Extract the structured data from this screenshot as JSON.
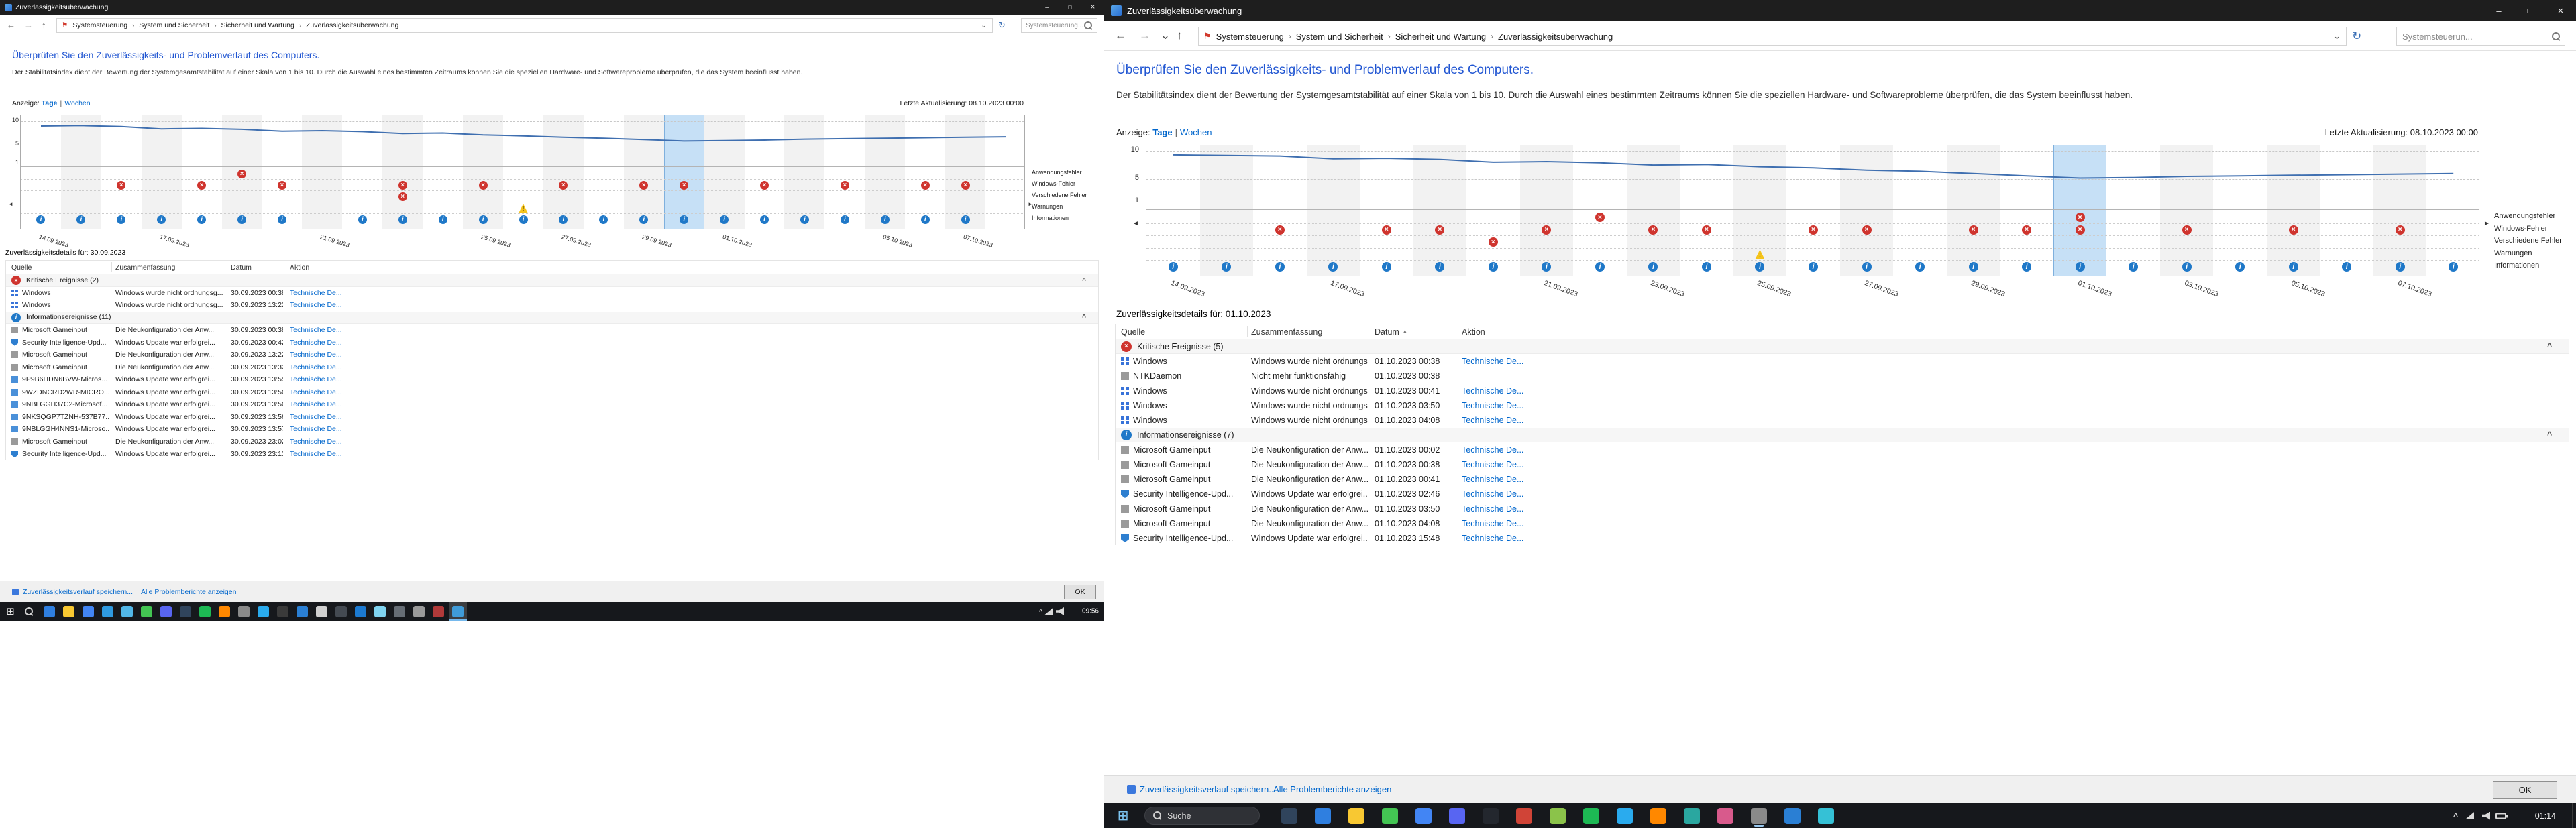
{
  "colors": {
    "heading_blue": "#2156d2",
    "link_blue": "#0066cc",
    "critical_red": "#cf342e",
    "info_blue": "#1f78c8",
    "warning_yellow": "#f5c41c",
    "selection_blue": "#c6e0f6",
    "line_blue": "#3f6fb0",
    "titlebar_dark": "#1e1e1e",
    "taskbar_dark": "#16181c"
  },
  "left_window": {
    "title": "Zuverlässigkeitsüberwachung",
    "breadcrumb": [
      "Systemsteuerung",
      "System und Sicherheit",
      "Sicherheit und Wartung",
      "Zuverlässigkeitsüberwachung"
    ],
    "search_text": "Systemsteuerung...",
    "heading": "Überprüfen Sie den Zuverlässigkeits- und Problemverlauf des Computers.",
    "description": "Der Stabilitätsindex dient der Bewertung der Systemgesamtstabilität auf einer Skala von 1 bis 10. Durch die Auswahl eines bestimmten Zeitraums können Sie die speziellen Hardware- und Softwareprobleme überprüfen, die das System beeinflusst haben.",
    "view_label": "Anzeige:",
    "view_days": "Tage",
    "view_separator": "|",
    "view_weeks": "Wochen",
    "last_update": "Letzte Aktualisierung: 08.10.2023 00:00",
    "details_title": "Zuverlässigkeitsdetails für: 30.09.2023",
    "columns": [
      "Quelle",
      "Zusammenfassung",
      "Datum",
      "Aktion"
    ],
    "groups": [
      {
        "type": "critical",
        "label": "Kritische Ereignisse (2)",
        "rows": [
          {
            "icon": "windows",
            "source": "Windows",
            "summary": "Windows wurde nicht ordnungsg...",
            "date": "30.09.2023 00:39",
            "action": "Technische De..."
          },
          {
            "icon": "windows",
            "source": "Windows",
            "summary": "Windows wurde nicht ordnungsg...",
            "date": "30.09.2023 13:22",
            "action": "Technische De..."
          }
        ]
      },
      {
        "type": "info",
        "label": "Informationsereignisse (11)",
        "rows": [
          {
            "icon": "app",
            "source": "Microsoft Gameinput",
            "summary": "Die Neukonfiguration der Anw...",
            "date": "30.09.2023 00:39",
            "action": "Technische De..."
          },
          {
            "icon": "shield",
            "source": "Security Intelligence-Upd...",
            "summary": "Windows Update war erfolgrei...",
            "date": "30.09.2023 00:42",
            "action": "Technische De..."
          },
          {
            "icon": "app",
            "source": "Microsoft Gameinput",
            "summary": "Die Neukonfiguration der Anw...",
            "date": "30.09.2023 13:22",
            "action": "Technische De..."
          },
          {
            "icon": "app",
            "source": "Microsoft Gameinput",
            "summary": "Die Neukonfiguration der Anw...",
            "date": "30.09.2023 13:32",
            "action": "Technische De..."
          },
          {
            "icon": "store",
            "source": "9P9B6HDN6BVW-Micros...",
            "summary": "Windows Update war erfolgrei...",
            "date": "30.09.2023 13:55",
            "action": "Technische De..."
          },
          {
            "icon": "store",
            "source": "9WZDNCRD2WR-MICRO...",
            "summary": "Windows Update war erfolgrei...",
            "date": "30.09.2023 13:56",
            "action": "Technische De..."
          },
          {
            "icon": "store",
            "source": "9NBLGGH37C2-Microsof...",
            "summary": "Windows Update war erfolgrei...",
            "date": "30.09.2023 13:56",
            "action": "Technische De..."
          },
          {
            "icon": "store",
            "source": "9NKSQGP7TZNH-537B77...",
            "summary": "Windows Update war erfolgrei...",
            "date": "30.09.2023 13:56",
            "action": "Technische De..."
          },
          {
            "icon": "store",
            "source": "9NBLGGH4NNS1-Microso...",
            "summary": "Windows Update war erfolgrei...",
            "date": "30.09.2023 13:57",
            "action": "Technische De..."
          },
          {
            "icon": "app",
            "source": "Microsoft Gameinput",
            "summary": "Die Neukonfiguration der Anw...",
            "date": "30.09.2023 23:02",
            "action": "Technische De..."
          },
          {
            "icon": "shield",
            "source": "Security Intelligence-Upd...",
            "summary": "Windows Update war erfolgrei...",
            "date": "30.09.2023 23:13",
            "action": "Technische De..."
          }
        ]
      }
    ],
    "footer": {
      "save_link": "Zuverlässigkeitsverlauf speichern...",
      "reports_link": "Alle Problemberichte anzeigen",
      "ok": "OK"
    },
    "taskbar": {
      "time": "09:56",
      "active_index": 21,
      "app_colors": [
        "#2f7fe0",
        "#f8c832",
        "#4285f4",
        "#2f9ae0",
        "#52b7e8",
        "#43c553",
        "#5865f2",
        "#30445c",
        "#1db954",
        "#ff8800",
        "#8a8a8a",
        "#2aabee",
        "#3a3a3a",
        "#2a7fd4",
        "#d0d0d0",
        "#444a52",
        "#1c7ad1",
        "#7fd3f0",
        "#666d75",
        "#9a9a9a",
        "#b13a3a",
        "#3f9bd8"
      ]
    }
  },
  "right_window": {
    "title": "Zuverlässigkeitsüberwachung",
    "breadcrumb": [
      "Systemsteuerung",
      "System und Sicherheit",
      "Sicherheit und Wartung",
      "Zuverlässigkeitsüberwachung"
    ],
    "search_text": "Systemsteuerun...",
    "heading": "Überprüfen Sie den Zuverlässigkeits- und Problemverlauf des Computers.",
    "description": "Der Stabilitätsindex dient der Bewertung der Systemgesamtstabilität auf einer Skala von 1 bis 10. Durch die Auswahl eines bestimmten Zeitraums können Sie die speziellen Hardware- und Softwareprobleme überprüfen, die das System beeinflusst haben.",
    "view_label": "Anzeige:",
    "view_days": "Tage",
    "view_separator": "|",
    "view_weeks": "Wochen",
    "last_update": "Letzte Aktualisierung: 08.10.2023 00:00",
    "details_title": "Zuverlässigkeitsdetails für: 01.10.2023",
    "columns": [
      "Quelle",
      "Zusammenfassung",
      "Datum",
      "Aktion"
    ],
    "groups": [
      {
        "type": "critical",
        "label": "Kritische Ereignisse (5)",
        "rows": [
          {
            "icon": "windows",
            "source": "Windows",
            "summary": "Windows wurde nicht ordnungsg...",
            "date": "01.10.2023 00:38",
            "action": "Technische De..."
          },
          {
            "icon": "app",
            "source": "NTKDaemon",
            "summary": "Nicht mehr funktionsfähig",
            "date": "01.10.2023 00:38",
            "action": ""
          },
          {
            "icon": "windows",
            "source": "Windows",
            "summary": "Windows wurde nicht ordnungsg...",
            "date": "01.10.2023 00:41",
            "action": "Technische De..."
          },
          {
            "icon": "windows",
            "source": "Windows",
            "summary": "Windows wurde nicht ordnungsg...",
            "date": "01.10.2023 03:50",
            "action": "Technische De..."
          },
          {
            "icon": "windows",
            "source": "Windows",
            "summary": "Windows wurde nicht ordnungsg...",
            "date": "01.10.2023 04:08",
            "action": "Technische De..."
          }
        ]
      },
      {
        "type": "info",
        "label": "Informationsereignisse (7)",
        "rows": [
          {
            "icon": "app",
            "source": "Microsoft Gameinput",
            "summary": "Die Neukonfiguration der Anw...",
            "date": "01.10.2023 00:02",
            "action": "Technische De..."
          },
          {
            "icon": "app",
            "source": "Microsoft Gameinput",
            "summary": "Die Neukonfiguration der Anw...",
            "date": "01.10.2023 00:38",
            "action": "Technische De..."
          },
          {
            "icon": "app",
            "source": "Microsoft Gameinput",
            "summary": "Die Neukonfiguration der Anw...",
            "date": "01.10.2023 00:41",
            "action": "Technische De..."
          },
          {
            "icon": "shield",
            "source": "Security Intelligence-Upd...",
            "summary": "Windows Update war erfolgrei...",
            "date": "01.10.2023 02:46",
            "action": "Technische De..."
          },
          {
            "icon": "app",
            "source": "Microsoft Gameinput",
            "summary": "Die Neukonfiguration der Anw...",
            "date": "01.10.2023 03:50",
            "action": "Technische De..."
          },
          {
            "icon": "app",
            "source": "Microsoft Gameinput",
            "summary": "Die Neukonfiguration der Anw...",
            "date": "01.10.2023 04:08",
            "action": "Technische De..."
          },
          {
            "icon": "shield",
            "source": "Security Intelligence-Upd...",
            "summary": "Windows Update war erfolgrei...",
            "date": "01.10.2023 15:48",
            "action": "Technische De..."
          }
        ]
      }
    ],
    "footer": {
      "save_link": "Zuverlässigkeitsverlauf speichern...",
      "reports_link": "Alle Problemberichte anzeigen",
      "ok": "OK"
    },
    "taskbar": {
      "search": "Suche",
      "time": "01:14",
      "active_index": 14,
      "app_colors": [
        "#30445c",
        "#2f7fe0",
        "#f8c832",
        "#43c553",
        "#4285f4",
        "#5865f2",
        "#23272e",
        "#d04437",
        "#8bc34a",
        "#1db954",
        "#2aabee",
        "#ff8800",
        "#2aa7a0",
        "#d85a8c",
        "#8a8a8a",
        "#2a7fd4",
        "#35c1d6"
      ]
    }
  },
  "chart_data": [
    {
      "type": "line",
      "window": "left",
      "ylim": [
        1,
        10
      ],
      "ylabel_ticks": [
        10,
        5,
        1
      ],
      "grid": true,
      "legend_position": "right",
      "selected_date": "30.09.2023",
      "selected_index": 16,
      "values": [
        9.0,
        9.1,
        8.9,
        8.4,
        8.5,
        8.3,
        7.9,
        8.0,
        7.8,
        7.4,
        7.5,
        7.1,
        6.9,
        6.6,
        6.4,
        6.1,
        5.8,
        5.9,
        6.0,
        6.2,
        6.3,
        6.4,
        6.5,
        6.6,
        6.7
      ],
      "x_ticks": [
        {
          "i": 0,
          "label": "14.09.2023"
        },
        {
          "i": 3,
          "label": "17.09.2023"
        },
        {
          "i": 7,
          "label": "21.09.2023"
        },
        {
          "i": 11,
          "label": "25.09.2023"
        },
        {
          "i": 13,
          "label": "27.09.2023"
        },
        {
          "i": 15,
          "label": "29.09.2023"
        },
        {
          "i": 17,
          "label": "01.10.2023"
        },
        {
          "i": 21,
          "label": "05.10.2023"
        },
        {
          "i": 23,
          "label": "07.10.2023"
        }
      ],
      "event_rows": [
        {
          "label": "Anwendungsfehler",
          "icon": "error",
          "cols": [
            5
          ]
        },
        {
          "label": "Windows-Fehler",
          "icon": "error",
          "cols": [
            2,
            4,
            6,
            9,
            11,
            13,
            15,
            16,
            18,
            20,
            22,
            23
          ]
        },
        {
          "label": "Verschiedene Fehler",
          "icon": "error",
          "cols": [
            9
          ]
        },
        {
          "label": "Warnungen",
          "icon": "warning",
          "cols": [
            12
          ]
        },
        {
          "label": "Informationen",
          "icon": "info",
          "cols": [
            0,
            1,
            2,
            3,
            4,
            5,
            6,
            8,
            9,
            10,
            11,
            12,
            13,
            14,
            15,
            16,
            17,
            18,
            19,
            20,
            21,
            22,
            23
          ]
        }
      ]
    },
    {
      "type": "line",
      "window": "right",
      "ylim": [
        1,
        10
      ],
      "ylabel_ticks": [
        10,
        5,
        1
      ],
      "grid": true,
      "legend_position": "right",
      "selected_date": "01.10.2023",
      "selected_index": 17,
      "values": [
        9.3,
        9.2,
        9.1,
        8.6,
        8.7,
        8.5,
        8.0,
        8.1,
        7.9,
        7.5,
        7.6,
        7.2,
        7.0,
        6.6,
        6.4,
        6.0,
        5.6,
        5.2,
        5.3,
        5.5,
        5.6,
        5.7,
        5.8,
        5.9,
        6.0
      ],
      "x_ticks": [
        {
          "i": 0,
          "label": "14.09.2023"
        },
        {
          "i": 3,
          "label": "17.09.2023"
        },
        {
          "i": 7,
          "label": "21.09.2023"
        },
        {
          "i": 9,
          "label": "23.09.2023"
        },
        {
          "i": 11,
          "label": "25.09.2023"
        },
        {
          "i": 13,
          "label": "27.09.2023"
        },
        {
          "i": 15,
          "label": "29.09.2023"
        },
        {
          "i": 17,
          "label": "01.10.2023"
        },
        {
          "i": 19,
          "label": "03.10.2023"
        },
        {
          "i": 21,
          "label": "05.10.2023"
        },
        {
          "i": 23,
          "label": "07.10.2023"
        }
      ],
      "event_rows": [
        {
          "label": "Anwendungsfehler",
          "icon": "error",
          "cols": [
            8,
            17
          ]
        },
        {
          "label": "Windows-Fehler",
          "icon": "error",
          "cols": [
            2,
            4,
            5,
            7,
            9,
            10,
            12,
            13,
            15,
            16,
            17,
            19,
            21,
            23
          ]
        },
        {
          "label": "Verschiedene Fehler",
          "icon": "error",
          "cols": [
            6
          ]
        },
        {
          "label": "Warnungen",
          "icon": "warning",
          "cols": [
            11
          ]
        },
        {
          "label": "Informationen",
          "icon": "info",
          "cols": [
            0,
            1,
            2,
            3,
            4,
            5,
            6,
            7,
            8,
            9,
            10,
            11,
            12,
            13,
            14,
            15,
            16,
            17,
            18,
            19,
            20,
            21,
            22,
            23,
            24
          ]
        }
      ]
    }
  ]
}
